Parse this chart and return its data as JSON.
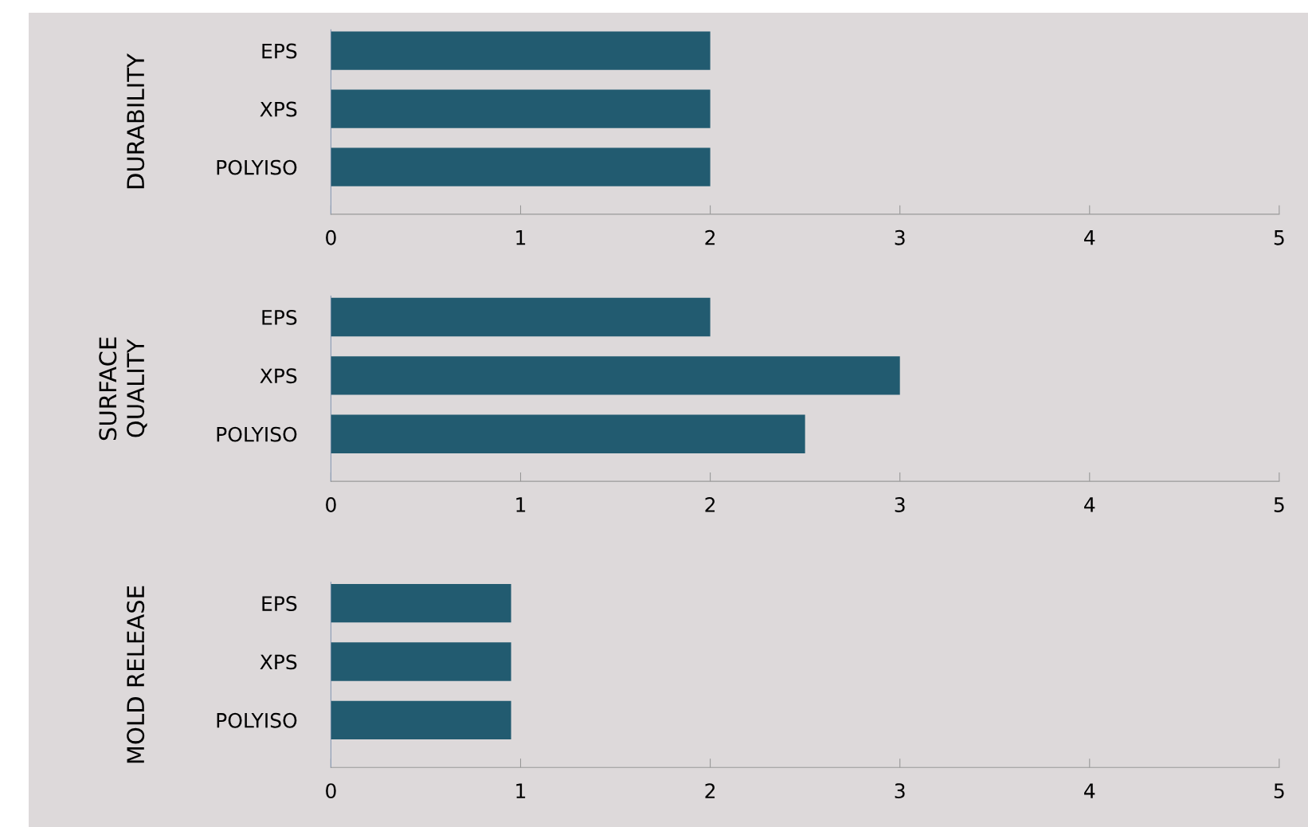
{
  "chart_data": [
    {
      "type": "bar",
      "orientation": "horizontal",
      "ylabel": "DURABILITY",
      "categories": [
        "EPS",
        "XPS",
        "POLYISO"
      ],
      "values": [
        2,
        2,
        2
      ],
      "color": "#225b70",
      "xlim": [
        0,
        5
      ],
      "xticks": [
        0,
        1,
        2,
        3,
        4,
        5
      ],
      "grid": false,
      "legend": false
    },
    {
      "type": "bar",
      "orientation": "horizontal",
      "ylabel": "SURFACE\nQUALITY",
      "categories": [
        "EPS",
        "XPS",
        "POLYISO"
      ],
      "values": [
        2,
        3,
        2.5
      ],
      "color": "#225b70",
      "xlim": [
        0,
        5
      ],
      "xticks": [
        0,
        1,
        2,
        3,
        4,
        5
      ],
      "grid": false,
      "legend": false
    },
    {
      "type": "bar",
      "orientation": "horizontal",
      "ylabel": "MOLD RELEASE",
      "categories": [
        "EPS",
        "XPS",
        "POLYISO"
      ],
      "values": [
        0.95,
        0.95,
        0.95
      ],
      "color": "#225b70",
      "xlim": [
        0,
        5
      ],
      "xticks": [
        0,
        1,
        2,
        3,
        4,
        5
      ],
      "grid": false,
      "legend": false
    }
  ]
}
